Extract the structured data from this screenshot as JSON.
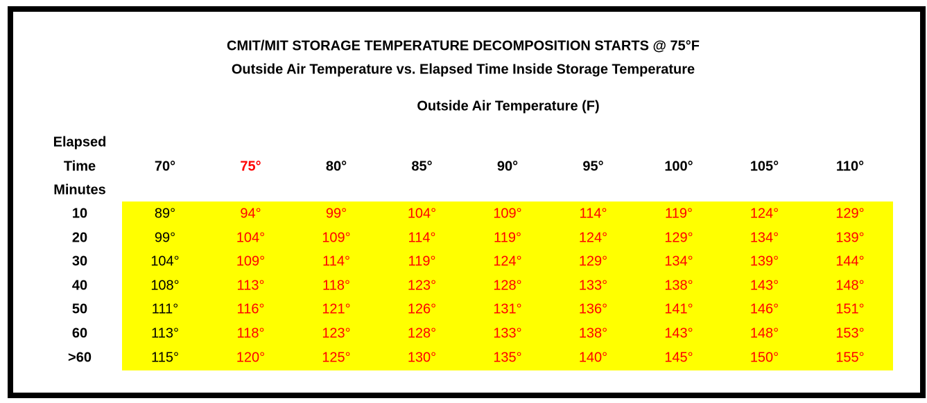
{
  "title": "CMIT/MIT STORAGE TEMPERATURE DECOMPOSITION STARTS @ 75°F",
  "subtitle": "Outside Air Temperature vs. Elapsed Time Inside Storage Temperature",
  "column_group_label": "Outside Air Temperature (F)",
  "row_header_lines": [
    "Elapsed",
    "Time",
    "Minutes"
  ],
  "colors": {
    "highlight": "#ffff00",
    "warning_text": "#ff0000",
    "normal_text": "#000000"
  },
  "chart_data": {
    "type": "table",
    "title": "CMIT/MIT STORAGE TEMPERATURE DECOMPOSITION STARTS @ 75°F",
    "columns": [
      "70°",
      "75°",
      "80°",
      "85°",
      "90°",
      "95°",
      "100°",
      "105°",
      "110°"
    ],
    "rows": [
      {
        "label": "10",
        "values": [
          "89°",
          "94°",
          "99°",
          "104°",
          "109°",
          "114°",
          "119°",
          "124°",
          "129°"
        ]
      },
      {
        "label": "20",
        "values": [
          "99°",
          "104°",
          "109°",
          "114°",
          "119°",
          "124°",
          "129°",
          "134°",
          "139°"
        ]
      },
      {
        "label": "30",
        "values": [
          "104°",
          "109°",
          "114°",
          "119°",
          "124°",
          "129°",
          "134°",
          "139°",
          "144°"
        ]
      },
      {
        "label": "40",
        "values": [
          "108°",
          "113°",
          "118°",
          "123°",
          "128°",
          "133°",
          "138°",
          "143°",
          "148°"
        ]
      },
      {
        "label": "50",
        "values": [
          "111°",
          "116°",
          "121°",
          "126°",
          "131°",
          "136°",
          "141°",
          "146°",
          "151°"
        ]
      },
      {
        "label": "60",
        "values": [
          "113°",
          "118°",
          "123°",
          "128°",
          "133°",
          "138°",
          "143°",
          "148°",
          "153°"
        ]
      },
      {
        "label": ">60",
        "values": [
          "115°",
          "120°",
          "125°",
          "130°",
          "135°",
          "140°",
          "145°",
          "150°",
          "155°"
        ]
      }
    ],
    "threshold_column": "75°"
  }
}
